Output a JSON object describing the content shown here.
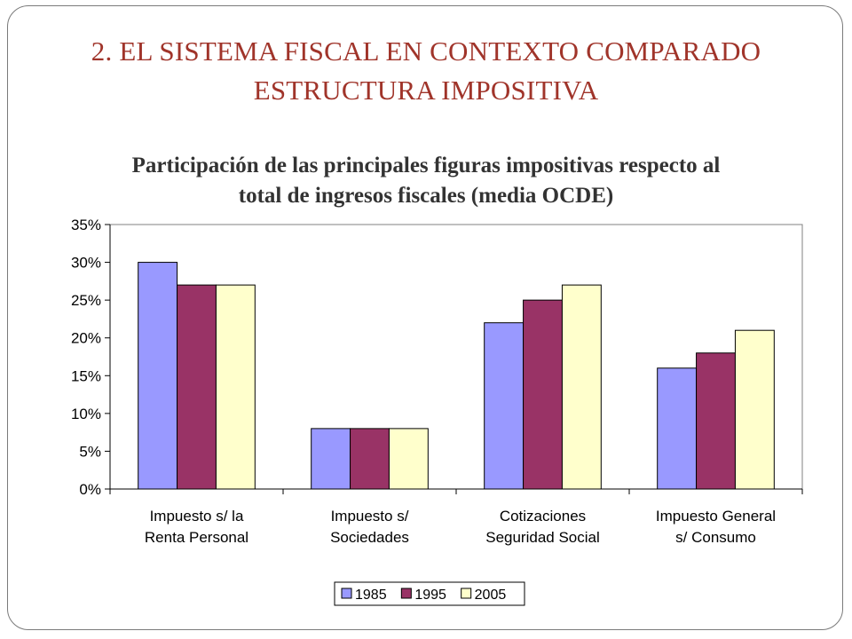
{
  "slide": {
    "title_line1": "2. EL SISTEMA FISCAL EN CONTEXTO COMPARADO",
    "title_line2": "ESTRUCTURA IMPOSITIVA"
  },
  "chart_data": {
    "type": "bar",
    "title_line1": "Participación de las principales figuras impositivas respecto al",
    "title_line2": "total de ingresos fiscales (media OCDE)",
    "categories": [
      [
        "Impuesto s/ la",
        "Renta Personal"
      ],
      [
        "Impuesto s/",
        "Sociedades"
      ],
      [
        "Cotizaciones",
        "Seguridad Social"
      ],
      [
        "Impuesto General",
        "s/ Consumo"
      ]
    ],
    "series": [
      {
        "name": "1985",
        "color": "#9999ff",
        "values": [
          0.3,
          0.08,
          0.22,
          0.16
        ]
      },
      {
        "name": "1995",
        "color": "#993366",
        "values": [
          0.27,
          0.08,
          0.25,
          0.18
        ]
      },
      {
        "name": "2005",
        "color": "#ffffcc",
        "values": [
          0.27,
          0.08,
          0.27,
          0.21
        ]
      }
    ],
    "ylim": [
      0,
      0.35
    ],
    "yticks": [
      0,
      0.05,
      0.1,
      0.15,
      0.2,
      0.25,
      0.3,
      0.35
    ],
    "ytick_labels": [
      "0%",
      "5%",
      "10%",
      "15%",
      "20%",
      "25%",
      "30%",
      "35%"
    ],
    "grid": false,
    "legend_position": "bottom"
  }
}
